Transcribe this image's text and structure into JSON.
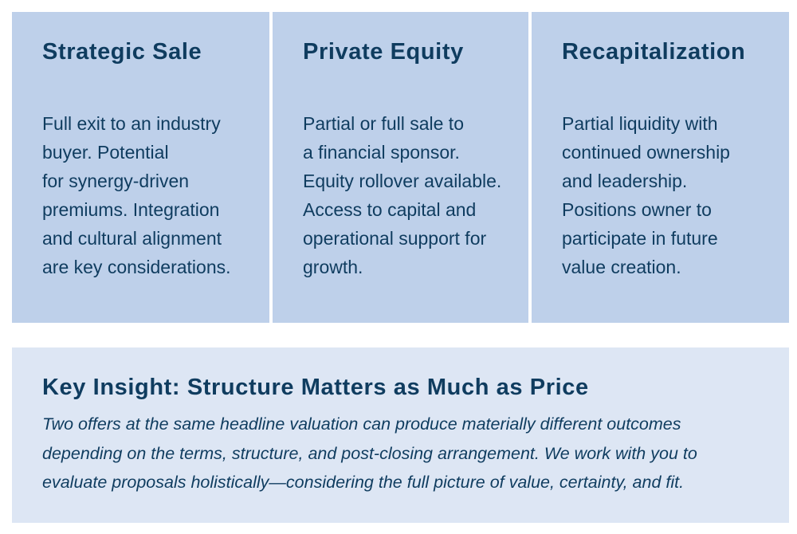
{
  "cards": [
    {
      "title": "Strategic Sale",
      "lines": [
        "Full exit to an industry",
        "buyer. Potential",
        "for synergy-driven",
        "premiums. Integration",
        "and cultural alignment",
        "are key considerations."
      ]
    },
    {
      "title": "Private Equity",
      "lines": [
        "Partial or full sale to",
        "a financial sponsor.",
        "Equity rollover available.",
        "Access to capital and",
        "operational support for",
        "growth."
      ]
    },
    {
      "title": "Recapitalization",
      "lines": [
        "Partial liquidity with",
        "continued ownership",
        "and leadership.",
        "Positions owner to",
        "participate in future",
        "value creation."
      ]
    }
  ],
  "insight": {
    "title": "Key Insight: Structure Matters as Much as Price",
    "lines": [
      "Two offers at the same headline valuation can produce materially different outcomes",
      "depending on the terms, structure, and post-closing arrangement. We work with you to",
      "evaluate proposals holistically—considering the full picture of value, certainty, and fit."
    ]
  }
}
